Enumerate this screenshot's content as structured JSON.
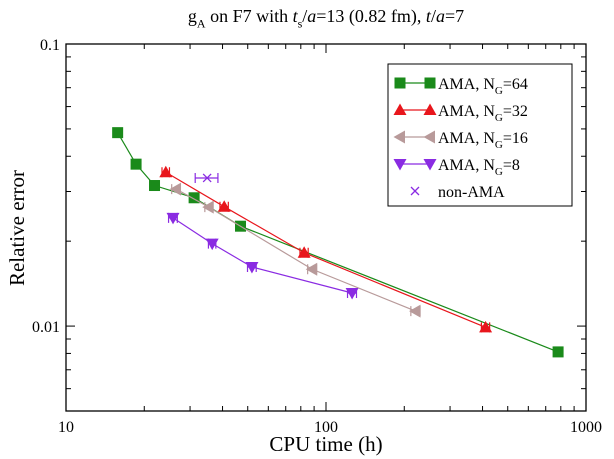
{
  "chart_data": {
    "type": "scatter",
    "title": {
      "parts": [
        {
          "t": "g",
          "style": "normal"
        },
        {
          "t": "A",
          "style": "sub"
        },
        {
          "t": " on F7 with ",
          "style": "normal"
        },
        {
          "t": "t",
          "style": "italic"
        },
        {
          "t": "s",
          "style": "sub"
        },
        {
          "t": "/",
          "style": "normal"
        },
        {
          "t": "a",
          "style": "italic"
        },
        {
          "t": "=13 (0.82 fm), ",
          "style": "normal"
        },
        {
          "t": "t",
          "style": "italic"
        },
        {
          "t": "/",
          "style": "normal"
        },
        {
          "t": "a",
          "style": "italic"
        },
        {
          "t": "=7",
          "style": "normal"
        }
      ]
    },
    "xlabel": "CPU time (h)",
    "ylabel": "Relative error",
    "x_scale": "log",
    "y_scale": "log",
    "xlim": [
      10,
      1000
    ],
    "ylim": [
      0.005,
      0.1
    ],
    "x_ticks": [
      10,
      100,
      1000
    ],
    "x_tick_labels": [
      "10",
      "100",
      "1000"
    ],
    "y_ticks": [
      0.01,
      0.1
    ],
    "y_tick_labels": [
      "0.01",
      "0.1"
    ],
    "grid": false,
    "legend_position": "top-right",
    "series": [
      {
        "legend_parts": [
          {
            "t": "AMA, N",
            "style": "normal"
          },
          {
            "t": "G",
            "style": "sub"
          },
          {
            "t": "=64",
            "style": "normal"
          }
        ],
        "color": "#1a8a1a",
        "marker": "square",
        "x": [
          15.8,
          18.6,
          21.9,
          31.1,
          46.9,
          781
        ],
        "y": [
          0.0485,
          0.0375,
          0.0315,
          0.0285,
          0.0226,
          0.0081
        ],
        "xerr": [
          0,
          0,
          0,
          0,
          0,
          0
        ]
      },
      {
        "legend_parts": [
          {
            "t": "AMA, N",
            "style": "normal"
          },
          {
            "t": "G",
            "style": "sub"
          },
          {
            "t": "=32",
            "style": "normal"
          }
        ],
        "color": "#e8161c",
        "marker": "triangle-up",
        "x": [
          24.2,
          40.6,
          82.4,
          411
        ],
        "y": [
          0.0351,
          0.0265,
          0.0182,
          0.0099
        ],
        "xerr": [
          0.8,
          1.5,
          3.0,
          15
        ]
      },
      {
        "legend_parts": [
          {
            "t": "AMA, N",
            "style": "normal"
          },
          {
            "t": "G",
            "style": "sub"
          },
          {
            "t": "=16",
            "style": "normal"
          }
        ],
        "color": "#b89a9a",
        "marker": "triangle-left",
        "x": [
          26.5,
          35.4,
          88.5,
          221
        ],
        "y": [
          0.0306,
          0.0264,
          0.0159,
          0.0113
        ],
        "xerr": [
          1.0,
          1.2,
          3.5,
          9
        ]
      },
      {
        "legend_parts": [
          {
            "t": "AMA, N",
            "style": "normal"
          },
          {
            "t": "G",
            "style": "sub"
          },
          {
            "t": "=8",
            "style": "normal"
          }
        ],
        "color": "#8a2be2",
        "marker": "triangle-down",
        "x": [
          25.8,
          36.5,
          51.9,
          126
        ],
        "y": [
          0.0242,
          0.0196,
          0.0162,
          0.0131
        ],
        "xerr": [
          1.0,
          1.2,
          2.0,
          5
        ]
      },
      {
        "legend_parts": [
          {
            "t": "non-AMA",
            "style": "normal"
          }
        ],
        "color": "#8a2be2",
        "marker": "x",
        "x": [
          34.9
        ],
        "y": [
          0.0335
        ],
        "xerr": [
          3.5
        ]
      }
    ]
  }
}
